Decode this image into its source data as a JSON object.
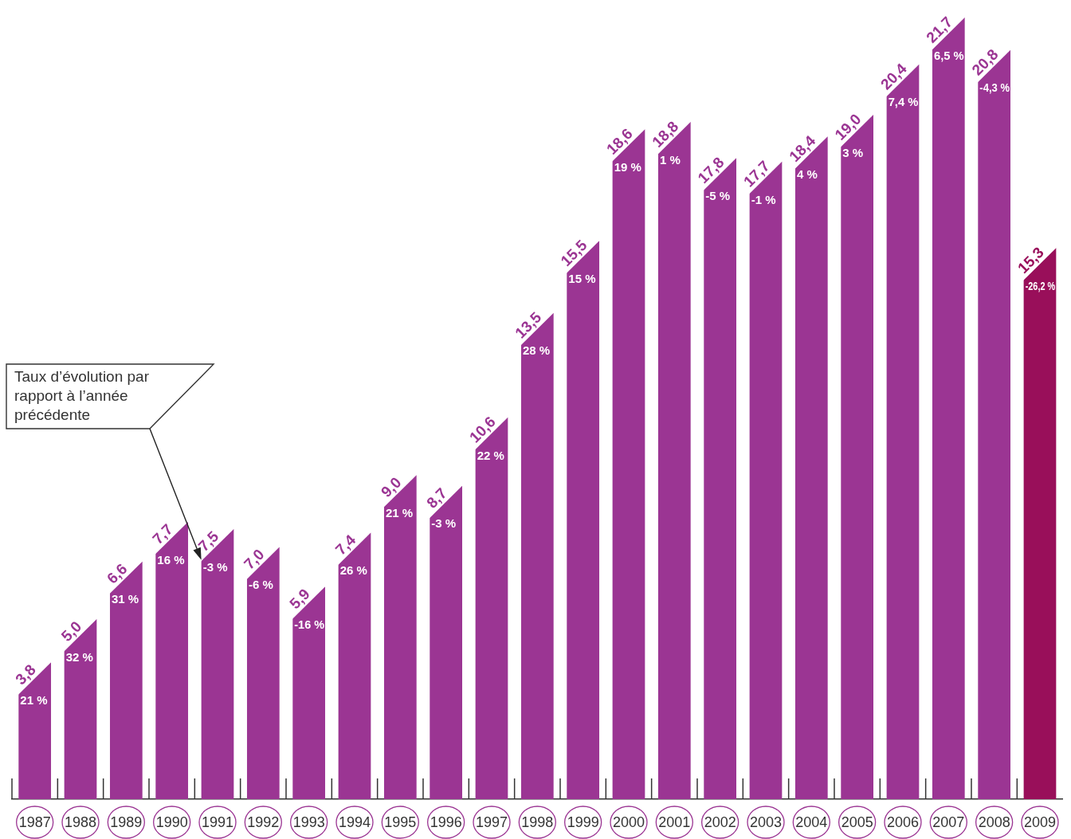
{
  "chart_data": {
    "type": "bar",
    "categories": [
      "1987",
      "1988",
      "1989",
      "1990",
      "1991",
      "1992",
      "1993",
      "1994",
      "1995",
      "1996",
      "1997",
      "1998",
      "1999",
      "2000",
      "2001",
      "2002",
      "2003",
      "2004",
      "2005",
      "2006",
      "2007",
      "2008",
      "2009"
    ],
    "values": [
      3.8,
      5.0,
      6.6,
      7.7,
      7.5,
      7.0,
      5.9,
      7.4,
      9.0,
      8.7,
      10.6,
      13.5,
      15.5,
      18.6,
      18.8,
      17.8,
      17.7,
      18.4,
      19.0,
      20.4,
      21.7,
      20.8,
      15.3
    ],
    "colors": [
      "#9b3593",
      "#9b3593",
      "#9b3593",
      "#9b3593",
      "#9b3593",
      "#9b3593",
      "#9b3593",
      "#9b3593",
      "#9b3593",
      "#9b3593",
      "#9b3593",
      "#9b3593",
      "#9b3593",
      "#9b3593",
      "#9b3593",
      "#9b3593",
      "#9b3593",
      "#9b3593",
      "#9b3593",
      "#9b3593",
      "#9b3593",
      "#9b3593",
      "#990f5a"
    ],
    "value_labels": [
      "3,8",
      "5,0",
      "6,6",
      "7,7",
      "7,5",
      "7,0",
      "5,9",
      "7,4",
      "9,0",
      "8,7",
      "10,6",
      "13,5",
      "15,5",
      "18,6",
      "18,8",
      "17,8",
      "17,7",
      "18,4",
      "19,0",
      "20,4",
      "21,7",
      "20,8",
      "15,3"
    ],
    "tick_labels": "x",
    "annotations": [
      "Taux d’évolution par rapport à l’année précédente",
      {
        "text": "21 %",
        "x": "1987",
        "y": 3.8
      },
      {
        "text": "32 %",
        "x": "1988",
        "y": 5.0
      },
      {
        "text": "31 %",
        "x": "1989",
        "y": 6.6
      },
      {
        "text": "16 %",
        "x": "1990",
        "y": 7.7
      },
      {
        "text": "-3 %",
        "x": "1991",
        "y": 7.5
      },
      {
        "text": "-6 %",
        "x": "1992",
        "y": 7.0
      },
      {
        "text": "-16 %",
        "x": "1993",
        "y": 5.9
      },
      {
        "text": "26 %",
        "x": "1994",
        "y": 7.4
      },
      {
        "text": "21 %",
        "x": "1995",
        "y": 9.0
      },
      {
        "text": "-3 %",
        "x": "1996",
        "y": 8.7
      },
      {
        "text": "22 %",
        "x": "1997",
        "y": 10.6
      },
      {
        "text": "28 %",
        "x": "1998",
        "y": 13.5
      },
      {
        "text": "15 %",
        "x": "1999",
        "y": 15.5
      },
      {
        "text": "19 %",
        "x": "2000",
        "y": 18.6
      },
      {
        "text": "1 %",
        "x": "2001",
        "y": 18.8
      },
      {
        "text": "-5 %",
        "x": "2002",
        "y": 17.8
      },
      {
        "text": "-1 %",
        "x": "2003",
        "y": 17.7
      },
      {
        "text": "4 %",
        "x": "2004",
        "y": 18.4
      },
      {
        "text": "3 %",
        "x": "2005",
        "y": 19.0
      },
      {
        "text": "7,4 %",
        "x": "2006",
        "y": 20.4
      },
      {
        "text": "6,5 %",
        "x": "2007",
        "y": 21.7
      },
      {
        "text": "-4,3 %",
        "x": "2008",
        "y": 20.8
      },
      {
        "text": "-26,2 %",
        "x": "2009",
        "y": 15.3
      }
    ]
  }
}
